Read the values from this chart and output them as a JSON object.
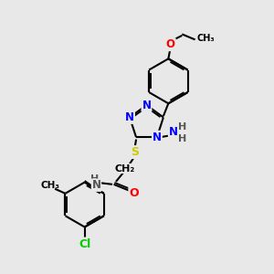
{
  "bg_color": "#e8e8e8",
  "atom_colors": {
    "N": "#0000ff",
    "O": "#ff0000",
    "S": "#cccc00",
    "Cl": "#00cc00",
    "C": "#000000",
    "H": "#555555"
  },
  "bond_color": "#000000",
  "bond_width": 1.5,
  "figsize": [
    3.0,
    3.0
  ],
  "dpi": 100,
  "xlim": [
    0,
    10
  ],
  "ylim": [
    0,
    10
  ]
}
